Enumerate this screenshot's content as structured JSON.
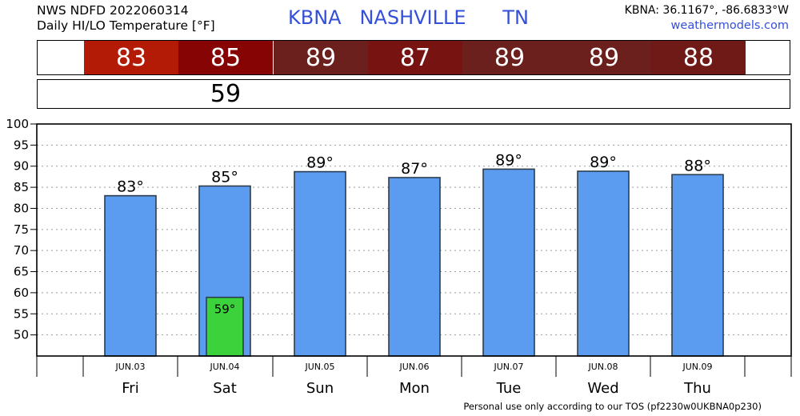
{
  "header": {
    "line1": "NWS NDFD 2022060314",
    "line2": "Daily HI/LO Temperature [°F]",
    "station": "KBNA   NASHVILLE      TN",
    "coords": "KBNA: 36.1167°, -86.6833°W",
    "site": "weathermodels.com"
  },
  "hi_strip": [
    {
      "label": "83",
      "color": "#b31b06"
    },
    {
      "label": "85",
      "color": "#860404"
    },
    {
      "label": "89",
      "color": "#6b201d"
    },
    {
      "label": "87",
      "color": "#771310"
    },
    {
      "label": "89",
      "color": "#6b201d"
    },
    {
      "label": "89",
      "color": "#6b201d"
    },
    {
      "label": "88",
      "color": "#701a18"
    }
  ],
  "lo_strip": [
    "",
    "59",
    "",
    "",
    "",
    "",
    ""
  ],
  "chart_data": {
    "type": "bar",
    "categories": [
      "JUN.03",
      "JUN.04",
      "JUN.05",
      "JUN.06",
      "JUN.07",
      "JUN.08",
      "JUN.09"
    ],
    "days": [
      "Fri",
      "Sat",
      "Sun",
      "Mon",
      "Tue",
      "Wed",
      "Thu"
    ],
    "series": [
      {
        "name": "HI",
        "values": [
          83,
          85.3,
          88.7,
          87.3,
          89.3,
          88.8,
          88
        ],
        "labels": [
          "83°",
          "85°",
          "89°",
          "87°",
          "89°",
          "89°",
          "88°"
        ],
        "color": "#5b9bf0"
      },
      {
        "name": "LO",
        "values": [
          null,
          58.9,
          null,
          null,
          null,
          null,
          null
        ],
        "labels": [
          "",
          "59°",
          "",
          "",
          "",
          "",
          ""
        ],
        "color": "#3cd23c"
      }
    ],
    "ylim": [
      45,
      100
    ],
    "yticks": [
      50,
      55,
      60,
      65,
      70,
      75,
      80,
      85,
      90,
      95,
      100
    ],
    "grid": true
  },
  "footer": "Personal use only according to our TOS (pf2230w0UKBNA0p230)"
}
